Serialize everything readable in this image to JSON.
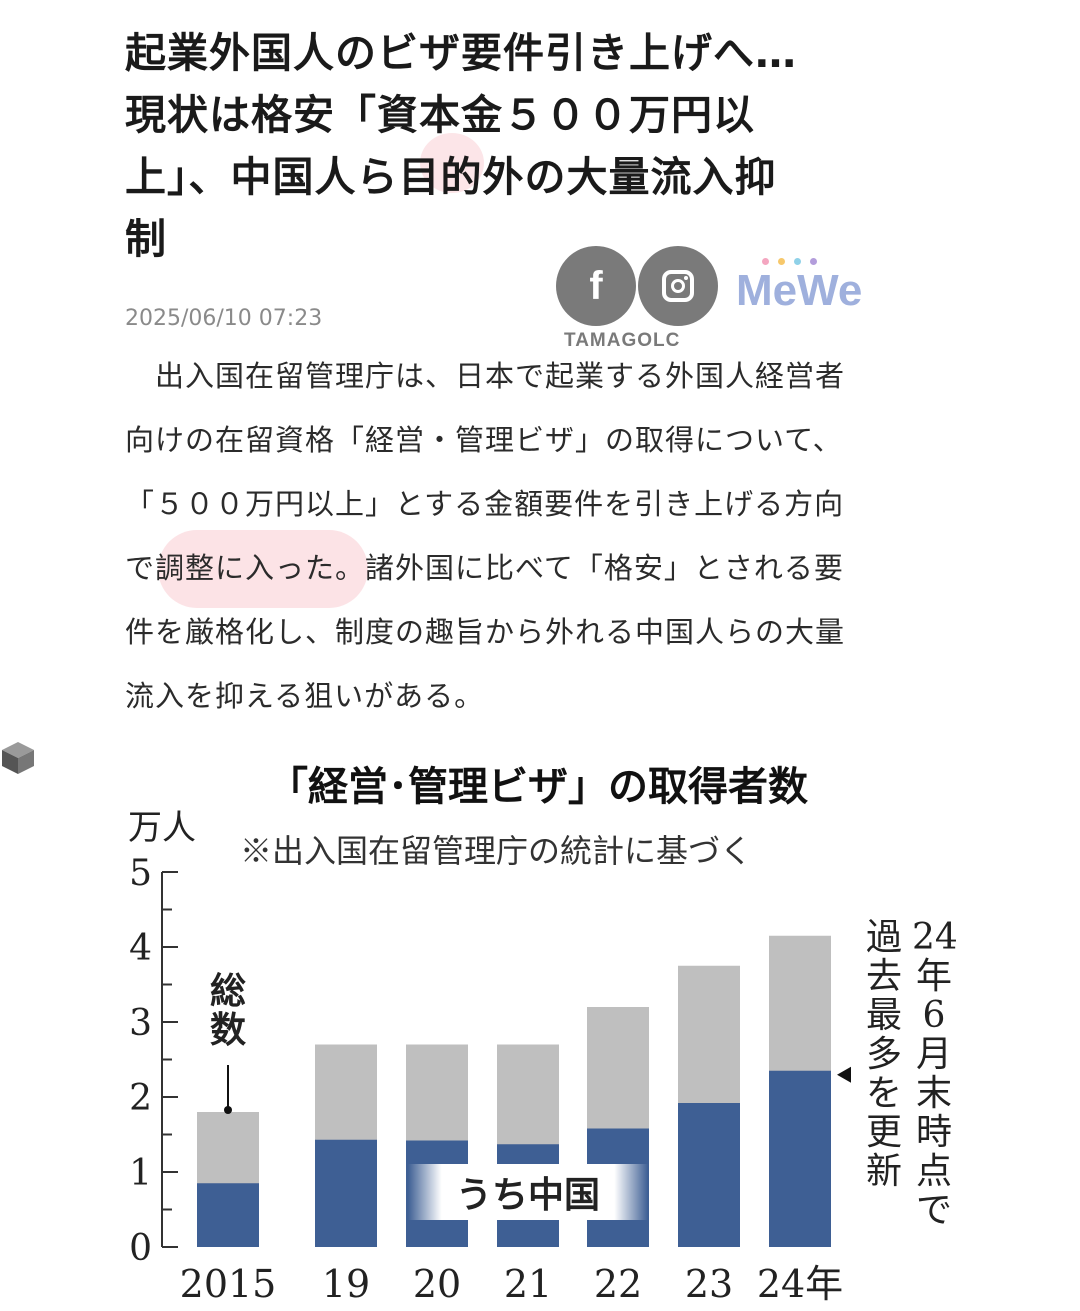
{
  "article": {
    "headline_lines": [
      "起業外国人のビザ要件引き上げへ…",
      "現状は格安「資本金５００万円以",
      "上」、中国人ら目的外の大量流入抑",
      "制"
    ],
    "date": "2025/06/10 07:23",
    "body_lines": [
      "　出入国在留管理庁は、日本で起業する外国人経営者",
      "向けの在留資格「経営・管理ビザ」の取得について、",
      "「５００万円以上」とする金額要件を引き上げる方向",
      "で調整に入った。諸外国に比べて「格安」とされる要",
      "件を厳格化し、制度の趣旨から外れる中国人らの大量",
      "流入を抑える狙いがある。"
    ]
  },
  "social": {
    "facebook_icon": "facebook-icon",
    "facebook_glyph": "f",
    "instagram_icon": "instagram-icon",
    "watermark": "TAMAGOLC",
    "mewe_label": "MeWe",
    "mewe_dot_colors": [
      "#f4a6c0",
      "#f7c86b",
      "#8fd1e8",
      "#b39ddb"
    ]
  },
  "colors": {
    "total_bar": "#bfbfbf",
    "china_bar": "#3e5f94",
    "axis": "#333333"
  },
  "chart_data": {
    "type": "bar",
    "title": "「経営･管理ビザ」の取得者数",
    "subtitle": "※出入国在留管理庁の統計に基づく",
    "ylabel": "万人",
    "ylim": [
      0,
      5
    ],
    "yticks": [
      0,
      1,
      2,
      3,
      4,
      5
    ],
    "categories": [
      "2015",
      "19",
      "20",
      "21",
      "22",
      "23",
      "24年"
    ],
    "series": [
      {
        "name": "総数",
        "values": [
          1.8,
          2.7,
          2.7,
          2.7,
          3.2,
          3.75,
          4.15
        ]
      },
      {
        "name": "うち中国",
        "values": [
          0.85,
          1.43,
          1.42,
          1.37,
          1.58,
          1.92,
          2.35
        ]
      }
    ],
    "annotations": {
      "total_label": "総数",
      "china_label": "うち中国",
      "record_note_lines": [
        "24年6月末時点で",
        "過去最多を更新"
      ]
    }
  }
}
